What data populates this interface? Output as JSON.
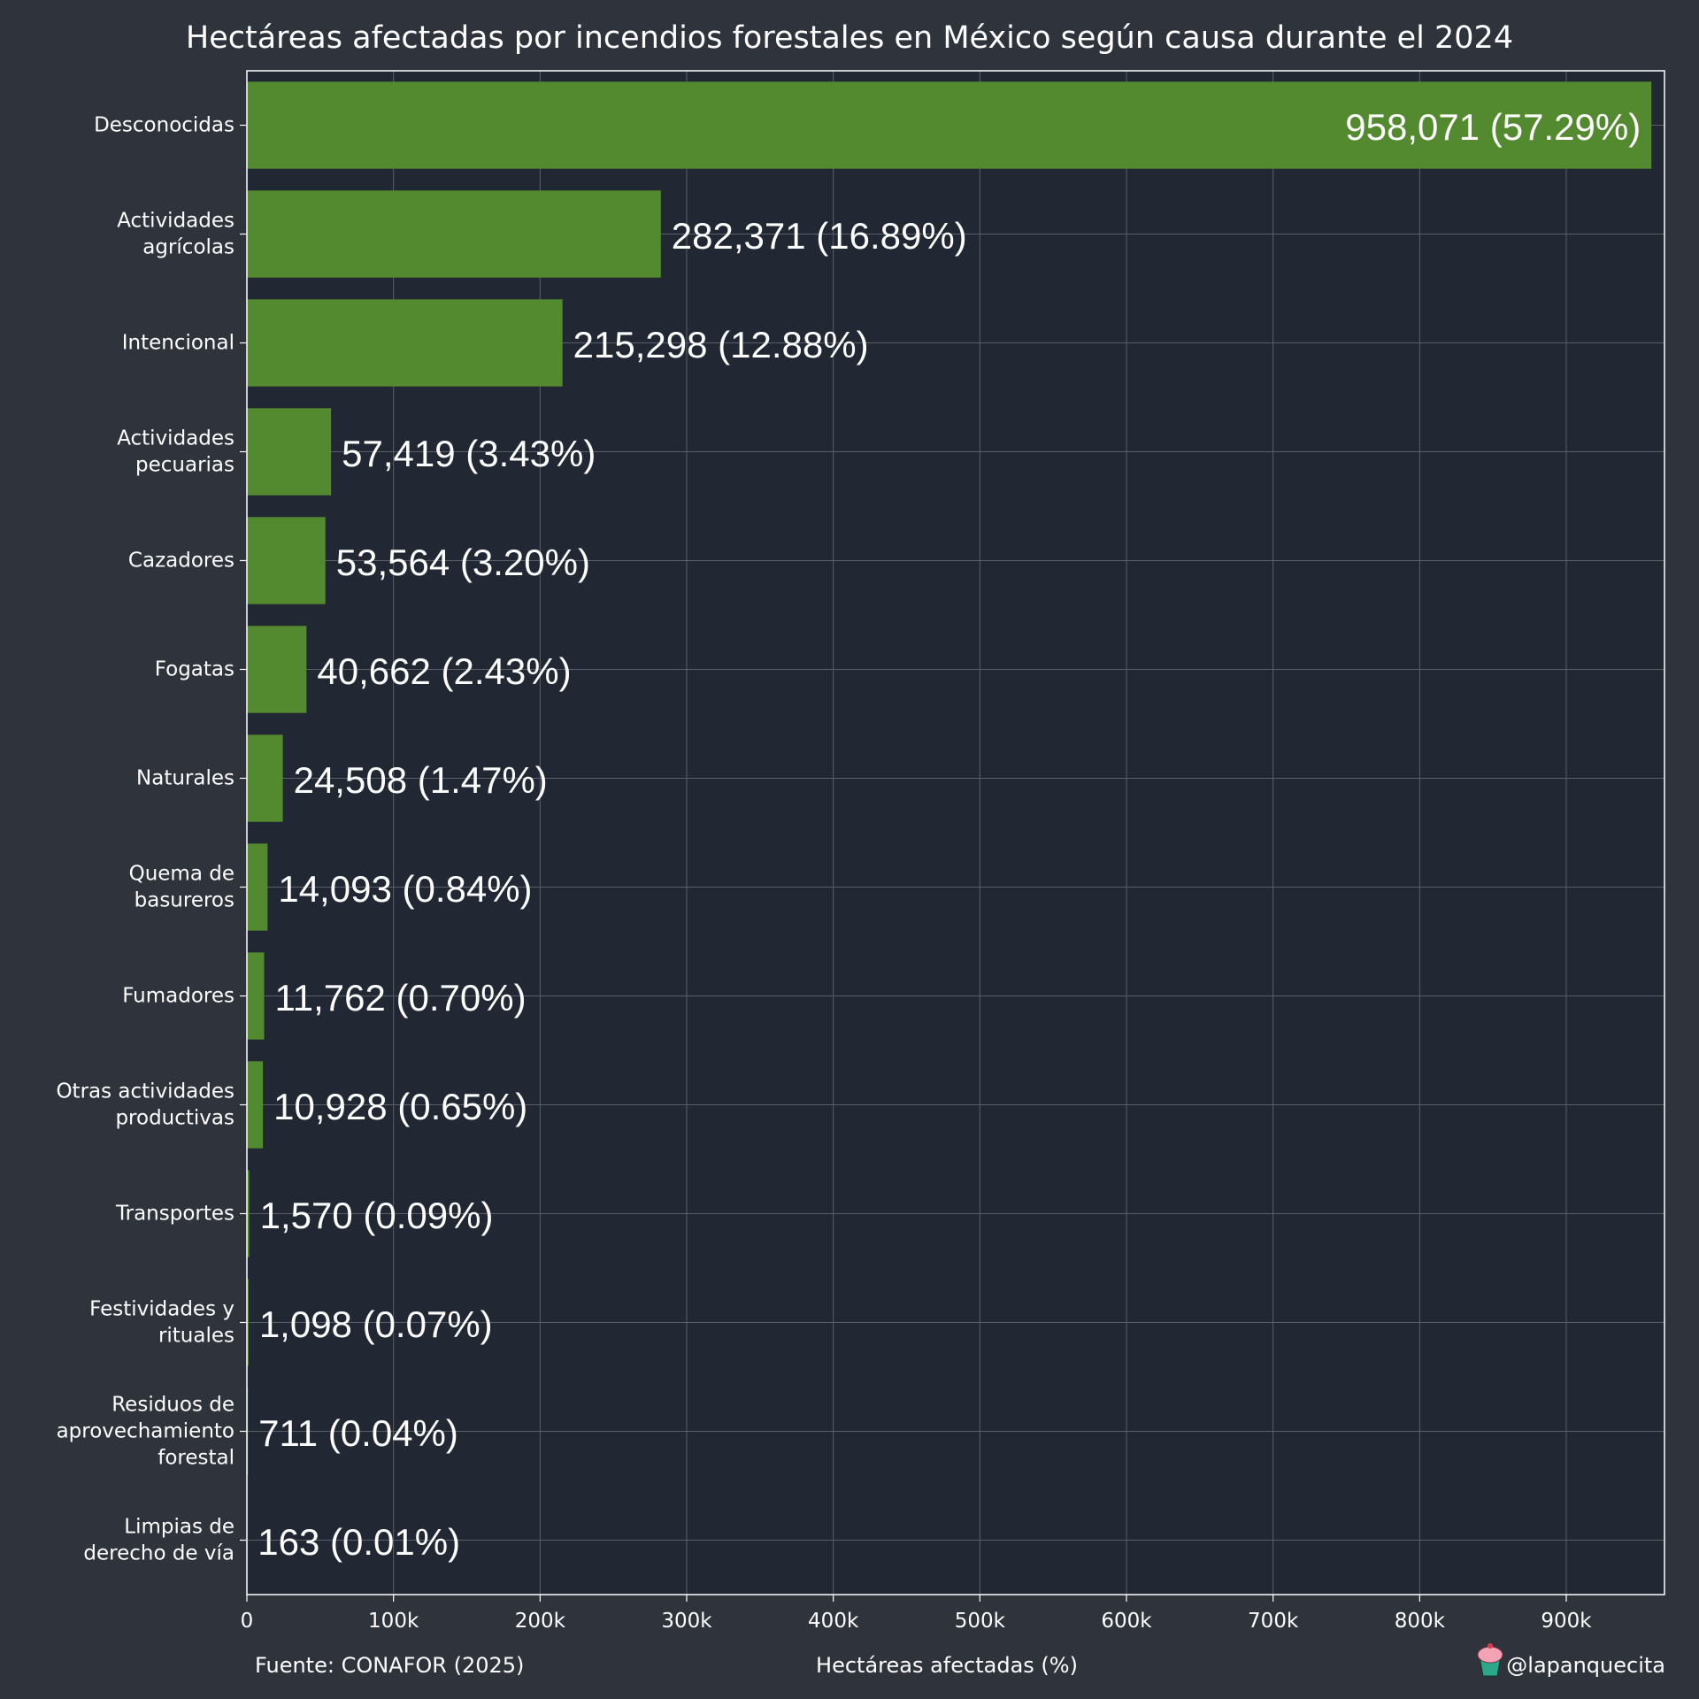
{
  "chart_data": {
    "type": "bar",
    "orientation": "horizontal",
    "title": "Hectáreas afectadas por incendios forestales en México según causa durante el 2024",
    "xlabel": "Hectáreas afectadas (%)",
    "ylabel": "",
    "xlim": [
      0,
      967000
    ],
    "xticks": [
      0,
      100000,
      200000,
      300000,
      400000,
      500000,
      600000,
      700000,
      800000,
      900000
    ],
    "xtick_labels": [
      "0",
      "100k",
      "200k",
      "300k",
      "400k",
      "500k",
      "600k",
      "700k",
      "800k",
      "900k"
    ],
    "grid": true,
    "bar_color": "#548a2f",
    "plot_background": "#212733",
    "page_background": "#2f333c",
    "categories": [
      "Desconocidas",
      "Actividades agrícolas",
      "Intencional",
      "Actividades pecuarias",
      "Cazadores",
      "Fogatas",
      "Naturales",
      "Quema de basureros",
      "Fumadores",
      "Otras actividades productivas",
      "Transportes",
      "Festividades y rituales",
      "Residuos de aprovechamiento forestal",
      "Limpias de derecho de vía"
    ],
    "category_lines": [
      [
        "Desconocidas"
      ],
      [
        "Actividades",
        "agrícolas"
      ],
      [
        "Intencional"
      ],
      [
        "Actividades",
        "pecuarias"
      ],
      [
        "Cazadores"
      ],
      [
        "Fogatas"
      ],
      [
        "Naturales"
      ],
      [
        "Quema de",
        "basureros"
      ],
      [
        "Fumadores"
      ],
      [
        "Otras actividades",
        "productivas"
      ],
      [
        "Transportes"
      ],
      [
        "Festividades y",
        "rituales"
      ],
      [
        "Residuos de",
        "aprovechamiento",
        "forestal"
      ],
      [
        "Limpias de",
        "derecho de vía"
      ]
    ],
    "values": [
      958071,
      282371,
      215298,
      57419,
      53564,
      40662,
      24508,
      14093,
      11762,
      10928,
      1570,
      1098,
      711,
      163
    ],
    "data_labels": [
      "958,071 (57.29%)",
      "282,371 (16.89%)",
      "215,298 (12.88%)",
      "57,419 (3.43%)",
      "53,564 (3.20%)",
      "40,662 (2.43%)",
      "24,508 (1.47%)",
      "14,093 (0.84%)",
      "11,762 (0.70%)",
      "10,928 (0.65%)",
      "1,570 (0.09%)",
      "1,098 (0.07%)",
      "711 (0.04%)",
      "163 (0.01%)"
    ]
  },
  "footer": {
    "source": "Fuente: CONAFOR (2025)",
    "author": "@lapanquecita",
    "author_icon": "cupcake-icon"
  }
}
